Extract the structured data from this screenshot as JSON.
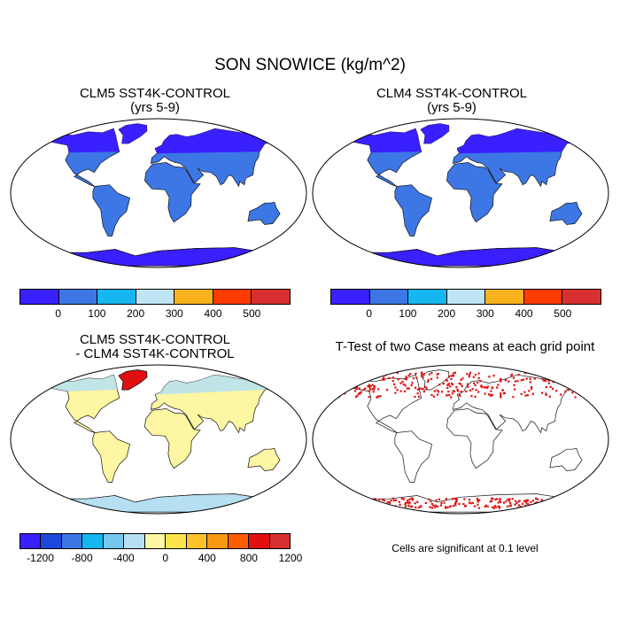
{
  "figure": {
    "title": "SON SNOWICE (kg/m^2)"
  },
  "panels": [
    {
      "id": "clm5",
      "title_line1": "CLM5 SST4K-CONTROL",
      "title_line2": "(yrs 5-9)"
    },
    {
      "id": "clm4",
      "title_line1": "CLM4 SST4K-CONTROL",
      "title_line2": "(yrs 5-9)"
    },
    {
      "id": "diff",
      "title_line1": "CLM5 SST4K-CONTROL",
      "title_line2": "- CLM4 SST4K-CONTROL"
    },
    {
      "id": "ttest",
      "title_line1": "T-Test of two Case means at each grid point",
      "note": "Cells are significant at 0.1 level"
    }
  ],
  "colorbars": {
    "absolute": {
      "colors": [
        "#3a1fff",
        "#3d77e6",
        "#16b7f0",
        "#bfe4f2",
        "#f8b21e",
        "#ff3c00",
        "#d83030"
      ],
      "tick_labels": [
        "0",
        "100",
        "200",
        "300",
        "400",
        "500"
      ]
    },
    "difference": {
      "colors": [
        "#3a1fff",
        "#1d48db",
        "#3d77e6",
        "#16b7f0",
        "#74c8ee",
        "#b6e0f2",
        "#fdf6a2",
        "#fde44c",
        "#fbc22a",
        "#f89a10",
        "#ff5c00",
        "#e01010",
        "#d83030"
      ],
      "tick_labels": [
        "-1200",
        "-800",
        "-400",
        "0",
        "400",
        "800",
        "1200"
      ]
    }
  },
  "map_colors": {
    "land_clm_absolute": "#3d77e6",
    "snow_high_latitude": "#3a1fff",
    "diff_land": "#fdf6a2",
    "diff_positive_light": "#b6e0f2",
    "diff_strong": "#e01010",
    "significance": "#e01010"
  }
}
